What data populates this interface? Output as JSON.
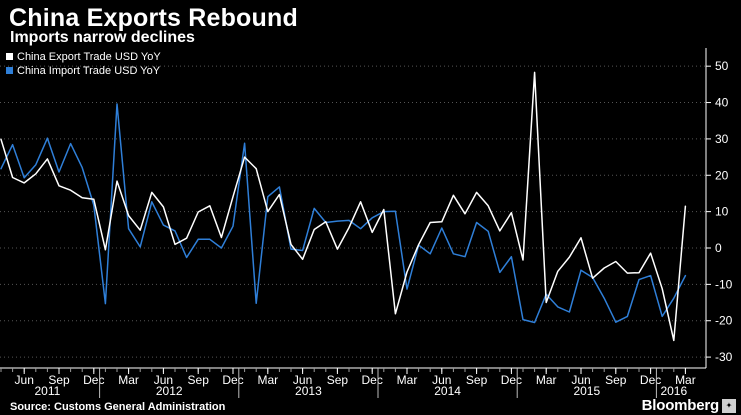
{
  "header": {
    "title": "China Exports Rebound",
    "subtitle": "Imports narrow declines"
  },
  "footer": {
    "source": "Source: Customs General Administration",
    "brand": "Bloomberg",
    "brand_mark": "✦"
  },
  "colors": {
    "background": "#000000",
    "exports": "#ffffff",
    "imports": "#2f7fd8",
    "grid": "#555555",
    "axis": "#ffffff"
  },
  "chart_data": {
    "type": "line",
    "title": "China Exports Rebound",
    "subtitle": "Imports narrow declines",
    "legend_position": "top-left",
    "grid": "horizontal dotted",
    "y_axis_side": "right",
    "ylim": [
      -33,
      55
    ],
    "yticks": [
      50,
      40,
      30,
      20,
      10,
      0,
      -10,
      -20,
      -30
    ],
    "x": [
      "2011-04",
      "2011-05",
      "2011-06",
      "2011-07",
      "2011-08",
      "2011-09",
      "2011-10",
      "2011-11",
      "2011-12",
      "2012-01",
      "2012-02",
      "2012-03",
      "2012-04",
      "2012-05",
      "2012-06",
      "2012-07",
      "2012-08",
      "2012-09",
      "2012-10",
      "2012-11",
      "2012-12",
      "2013-01",
      "2013-02",
      "2013-03",
      "2013-04",
      "2013-05",
      "2013-06",
      "2013-07",
      "2013-08",
      "2013-09",
      "2013-10",
      "2013-11",
      "2013-12",
      "2014-01",
      "2014-02",
      "2014-03",
      "2014-04",
      "2014-05",
      "2014-06",
      "2014-07",
      "2014-08",
      "2014-09",
      "2014-10",
      "2014-11",
      "2014-12",
      "2015-01",
      "2015-02",
      "2015-03",
      "2015-04",
      "2015-05",
      "2015-06",
      "2015-07",
      "2015-08",
      "2015-09",
      "2015-10",
      "2015-11",
      "2015-12",
      "2016-01",
      "2016-02",
      "2016-03"
    ],
    "x_tick_labels": [
      {
        "at": "2011-06",
        "label": "Jun"
      },
      {
        "at": "2011-09",
        "label": "Sep"
      },
      {
        "at": "2011-12",
        "label": "Dec"
      },
      {
        "at": "2012-03",
        "label": "Mar"
      },
      {
        "at": "2012-06",
        "label": "Jun"
      },
      {
        "at": "2012-09",
        "label": "Sep"
      },
      {
        "at": "2012-12",
        "label": "Dec"
      },
      {
        "at": "2013-03",
        "label": "Mar"
      },
      {
        "at": "2013-06",
        "label": "Jun"
      },
      {
        "at": "2013-09",
        "label": "Sep"
      },
      {
        "at": "2013-12",
        "label": "Dec"
      },
      {
        "at": "2014-03",
        "label": "Mar"
      },
      {
        "at": "2014-06",
        "label": "Jun"
      },
      {
        "at": "2014-09",
        "label": "Sep"
      },
      {
        "at": "2014-12",
        "label": "Dec"
      },
      {
        "at": "2015-03",
        "label": "Mar"
      },
      {
        "at": "2015-06",
        "label": "Jun"
      },
      {
        "at": "2015-09",
        "label": "Sep"
      },
      {
        "at": "2015-12",
        "label": "Dec"
      },
      {
        "at": "2016-03",
        "label": "Mar"
      }
    ],
    "x_year_labels": [
      {
        "year": "2011",
        "from": "2011-04",
        "to": "2011-12"
      },
      {
        "year": "2012",
        "from": "2012-01",
        "to": "2012-12"
      },
      {
        "year": "2013",
        "from": "2013-01",
        "to": "2013-12"
      },
      {
        "year": "2014",
        "from": "2014-01",
        "to": "2014-12"
      },
      {
        "year": "2015",
        "from": "2015-01",
        "to": "2015-12"
      },
      {
        "year": "2016",
        "from": "2016-01",
        "to": "2016-03"
      }
    ],
    "series": [
      {
        "name": "China Export Trade USD YoY",
        "color": "#ffffff",
        "values": [
          29.9,
          19.4,
          17.9,
          20.4,
          24.5,
          17.1,
          15.9,
          13.8,
          13.4,
          -0.5,
          18.4,
          8.9,
          4.9,
          15.3,
          11.3,
          1.0,
          2.7,
          9.9,
          11.6,
          2.9,
          14.1,
          25.0,
          21.8,
          10.0,
          14.7,
          1.0,
          -3.1,
          5.1,
          7.2,
          -0.3,
          5.6,
          12.7,
          4.3,
          10.6,
          -18.1,
          -6.6,
          0.9,
          7.0,
          7.2,
          14.5,
          9.4,
          15.3,
          11.6,
          4.7,
          9.7,
          -3.3,
          48.3,
          -15.0,
          -6.4,
          -2.5,
          2.8,
          -8.3,
          -5.5,
          -3.7,
          -6.9,
          -6.8,
          -1.4,
          -11.2,
          -25.4,
          11.5
        ]
      },
      {
        "name": "China Import Trade USD YoY",
        "color": "#2f7fd8",
        "values": [
          21.8,
          28.4,
          19.3,
          22.9,
          30.2,
          20.9,
          28.7,
          22.1,
          11.8,
          -15.3,
          39.6,
          5.3,
          0.3,
          12.7,
          6.3,
          4.7,
          -2.6,
          2.4,
          2.4,
          0.0,
          6.0,
          28.8,
          -15.2,
          14.1,
          16.8,
          -0.3,
          -0.7,
          10.9,
          7.0,
          7.4,
          7.6,
          5.3,
          8.3,
          10.0,
          10.1,
          -11.3,
          0.8,
          -1.6,
          5.5,
          -1.6,
          -2.4,
          7.0,
          4.6,
          -6.7,
          -2.4,
          -19.7,
          -20.5,
          -12.7,
          -16.2,
          -17.6,
          -6.1,
          -8.1,
          -13.8,
          -20.4,
          -18.8,
          -8.7,
          -7.6,
          -18.8,
          -13.8,
          -7.6
        ]
      }
    ]
  }
}
